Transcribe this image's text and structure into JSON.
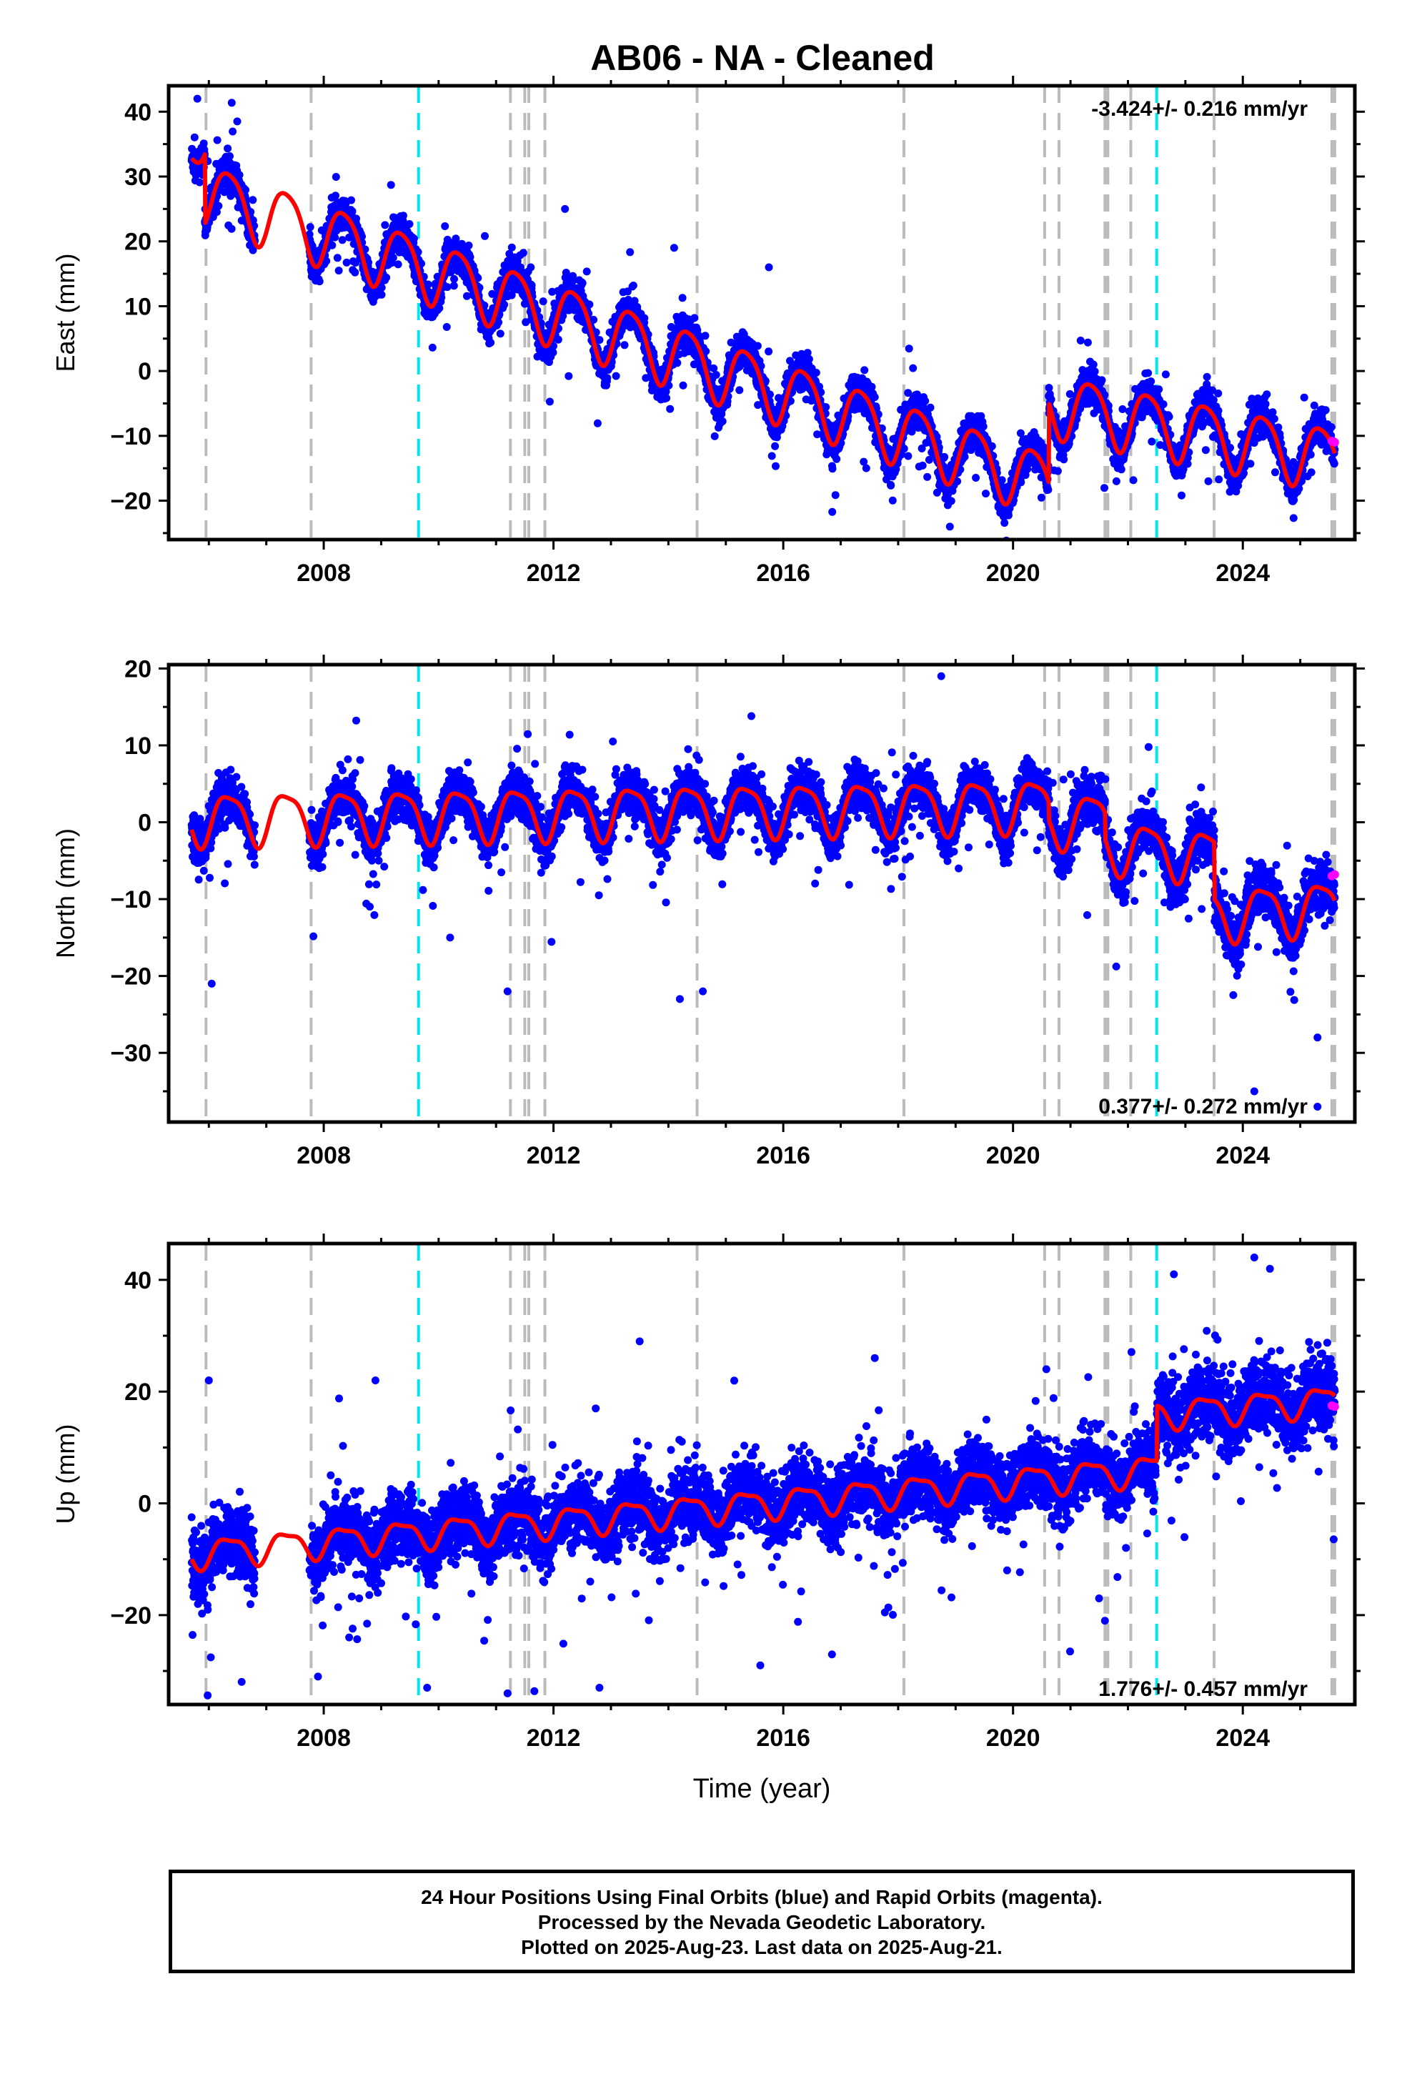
{
  "title": "AB06  - NA - Cleaned",
  "colors": {
    "final_orbits": "#0000ff",
    "rapid_orbits": "#ff00ff",
    "model": "#ff0000",
    "offset_equipment": "#bbbbbb",
    "offset_earthquake": "#00e5ee"
  },
  "chart_data": [
    {
      "type": "scatter",
      "component": "east",
      "ylabel": "East (mm)",
      "xlabel": "",
      "xlim": [
        2005.3,
        2025.95
      ],
      "ylim": [
        -26,
        44
      ],
      "xticks": [
        2008,
        2012,
        2016,
        2020,
        2024
      ],
      "yticks": [
        -20,
        -10,
        0,
        10,
        20,
        30,
        40
      ],
      "rate_text": "-3.424+/- 0.216 mm/yr",
      "rate_position": "top-right",
      "model_segments": [
        {
          "from": 2005.7,
          "to": 2005.93,
          "start": 33.5,
          "rate": 10.0,
          "annual": 2.0,
          "noise": 2.0
        },
        {
          "from": 2005.93,
          "to": 2020.62,
          "start": 27.5,
          "rate": -3.05,
          "annual": 4.8,
          "noise": 2.4
        },
        {
          "from": 2020.62,
          "to": 2025.6,
          "start": -5.0,
          "rate": -1.7,
          "annual": 4.8,
          "noise": 2.3
        }
      ],
      "gaps": [
        [
          2006.8,
          2007.75
        ]
      ],
      "outliers": [
        [
          2005.8,
          42
        ],
        [
          2015.75,
          16
        ],
        [
          2018.9,
          -24
        ],
        [
          2017.4,
          -14
        ],
        [
          2021.8,
          -17
        ],
        [
          2023.4,
          -17
        ],
        [
          2012.2,
          25
        ],
        [
          2014.1,
          19
        ]
      ],
      "rapid_points": [
        [
          2025.55,
          -10.8
        ],
        [
          2025.6,
          -11.0
        ]
      ]
    },
    {
      "type": "scatter",
      "component": "north",
      "ylabel": "North (mm)",
      "xlabel": "",
      "xlim": [
        2005.3,
        2025.95
      ],
      "ylim": [
        -39,
        20.5
      ],
      "xticks": [
        2008,
        2012,
        2016,
        2020,
        2024
      ],
      "yticks": [
        -30,
        -20,
        -10,
        0,
        10,
        20
      ],
      "rate_text": "0.377+/- 0.272 mm/yr",
      "rate_position": "bottom-right",
      "model_segments": [
        {
          "from": 2005.7,
          "to": 2020.62,
          "start": 0.5,
          "rate": 0.12,
          "annual": 3.3,
          "noise": 2.6
        },
        {
          "from": 2020.62,
          "to": 2021.6,
          "start": 0.0,
          "rate": 0.5,
          "annual": 3.3,
          "noise": 2.8
        },
        {
          "from": 2021.6,
          "to": 2023.5,
          "start": -3.0,
          "rate": -0.8,
          "annual": 3.3,
          "noise": 2.8
        },
        {
          "from": 2023.5,
          "to": 2025.6,
          "start": -12.0,
          "rate": 0.5,
          "annual": 3.3,
          "noise": 3.0
        }
      ],
      "gaps": [
        [
          2006.8,
          2007.75
        ]
      ],
      "outliers": [
        [
          2018.75,
          19
        ],
        [
          2006.05,
          -21
        ],
        [
          2011.2,
          -22
        ],
        [
          2014.2,
          -23
        ],
        [
          2014.6,
          -22
        ],
        [
          2010.2,
          -15
        ],
        [
          2025.3,
          -28
        ],
        [
          2024.2,
          -35
        ],
        [
          2025.3,
          -37
        ]
      ],
      "rapid_points": [
        [
          2025.55,
          -7.0
        ],
        [
          2025.6,
          -6.8
        ]
      ]
    },
    {
      "type": "scatter",
      "component": "up",
      "ylabel": "Up (mm)",
      "xlabel": "Time (year)",
      "xlim": [
        2005.3,
        2025.95
      ],
      "ylim": [
        -36,
        46.5
      ],
      "xticks": [
        2008,
        2012,
        2016,
        2020,
        2024
      ],
      "yticks": [
        -20,
        0,
        20,
        40
      ],
      "rate_text": "1.776+/- 0.457 mm/yr",
      "rate_position": "bottom-right",
      "model_segments": [
        {
          "from": 2005.7,
          "to": 2022.5,
          "start": -9.0,
          "rate": 0.9,
          "annual": 2.5,
          "noise": 5.5
        },
        {
          "from": 2022.5,
          "to": 2025.6,
          "start": 16.0,
          "rate": 0.8,
          "annual": 2.5,
          "noise": 6.0
        }
      ],
      "gaps": [
        [
          2006.8,
          2007.75
        ]
      ],
      "outliers": [
        [
          2024.2,
          44
        ],
        [
          2022.8,
          41
        ],
        [
          2013.5,
          29
        ],
        [
          2012.8,
          -33
        ],
        [
          2011.2,
          -34
        ],
        [
          2015.6,
          -29
        ],
        [
          2007.9,
          -31
        ],
        [
          2009.8,
          -33
        ],
        [
          2006.0,
          22
        ],
        [
          2008.9,
          22
        ],
        [
          2021.6,
          -21
        ]
      ],
      "rapid_points": [
        [
          2025.55,
          17.5
        ],
        [
          2025.6,
          17.3
        ]
      ]
    }
  ],
  "offsets": {
    "equipment": [
      2005.95,
      2007.78,
      2011.25,
      2011.5,
      2011.57,
      2011.85,
      2014.5,
      2018.1,
      2020.55,
      2020.8,
      2021.6,
      2021.65,
      2022.05,
      2023.5,
      2025.55,
      2025.6
    ],
    "earthquake": [
      2009.65,
      2022.5
    ]
  },
  "footer": {
    "line1": "24 Hour Positions Using Final Orbits (blue) and Rapid Orbits (magenta).",
    "line2": "Processed by the Nevada Geodetic Laboratory.",
    "line3": "Plotted on 2025-Aug-23. Last data on 2025-Aug-21."
  }
}
